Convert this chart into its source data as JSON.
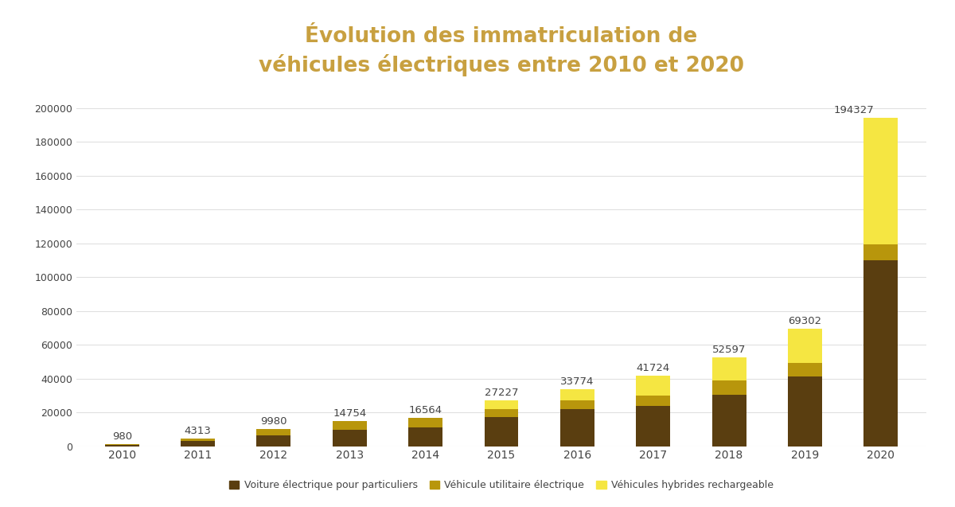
{
  "years": [
    "2010",
    "2011",
    "2012",
    "2013",
    "2014",
    "2015",
    "2016",
    "2017",
    "2018",
    "2019",
    "2020"
  ],
  "totals": [
    980,
    4313,
    9980,
    14754,
    16564,
    27227,
    33774,
    41724,
    52597,
    69302,
    194327
  ],
  "particuliers": [
    530,
    2900,
    6600,
    9800,
    11000,
    17000,
    22000,
    24000,
    30500,
    41200,
    110000
  ],
  "utilitaire": [
    450,
    1413,
    3380,
    4954,
    5564,
    4727,
    5274,
    6024,
    8597,
    8102,
    9327
  ],
  "color_particuliers": "#5a3e10",
  "color_utilitaire": "#b8960c",
  "color_hybrides": "#f5e642",
  "title_line1": "Évolution des immatriculation de",
  "title_line2": "véhicules électriques entre 2010 et 2020",
  "title_color": "#c8a040",
  "legend_particuliers": "Voiture électrique pour particuliers",
  "legend_utilitaire": "Véhicule utilitaire électrique",
  "legend_hybrides": "Véhicules hybrides rechargeable",
  "background_color": "#ffffff",
  "ylim": [
    0,
    210000
  ],
  "yticks": [
    0,
    20000,
    40000,
    60000,
    80000,
    100000,
    120000,
    140000,
    160000,
    180000,
    200000
  ],
  "label_color": "#444444",
  "grid_color": "#e0e0e0"
}
